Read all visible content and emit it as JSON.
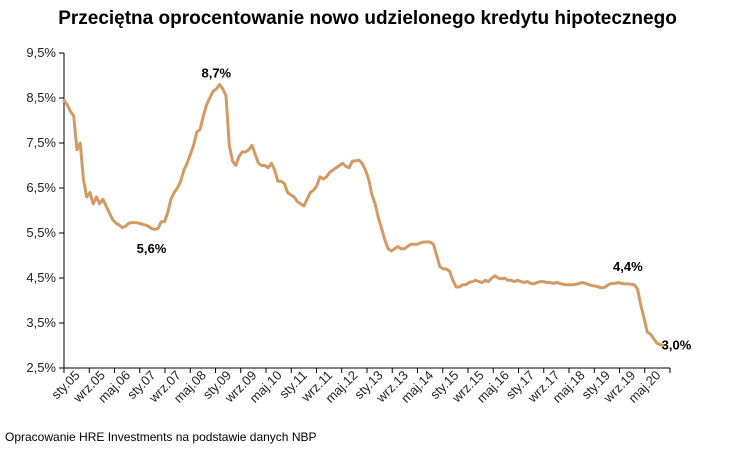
{
  "chart_data": {
    "type": "line",
    "title": "Przeciętna oprocentowanie nowo udzielonego kredytu hipotecznego",
    "source": "Opracowanie HRE Investments na podstawie danych NBP",
    "ylim": [
      2.5,
      9.5
    ],
    "yticks": [
      {
        "value": 2.5,
        "label": "2,5%"
      },
      {
        "value": 3.5,
        "label": "3,5%"
      },
      {
        "value": 4.5,
        "label": "4,5%"
      },
      {
        "value": 5.5,
        "label": "5,5%"
      },
      {
        "value": 6.5,
        "label": "6,5%"
      },
      {
        "value": 7.5,
        "label": "7,5%"
      },
      {
        "value": 8.5,
        "label": "8,5%"
      },
      {
        "value": 9.5,
        "label": "9,5%"
      }
    ],
    "x_start": "2005-01",
    "x_end": "2020-08",
    "xticks": [
      "sty.05",
      "wrz.05",
      "maj.06",
      "sty.07",
      "wrz.07",
      "maj.08",
      "sty.09",
      "wrz.09",
      "maj.10",
      "sty.11",
      "wrz.11",
      "maj.12",
      "sty.13",
      "wrz.13",
      "maj.14",
      "sty.15",
      "wrz.15",
      "maj.16",
      "sty.17",
      "wrz.17",
      "maj.18",
      "sty.19",
      "wrz.19",
      "maj.20"
    ],
    "grid": false,
    "line_color": "#d49a63",
    "series": [
      {
        "points": [
          [
            "2005-01",
            8.45
          ],
          [
            "2005-02",
            8.35
          ],
          [
            "2005-03",
            8.2
          ],
          [
            "2005-04",
            8.1
          ],
          [
            "2005-05",
            7.35
          ],
          [
            "2005-06",
            7.5
          ],
          [
            "2005-07",
            6.7
          ],
          [
            "2005-08",
            6.3
          ],
          [
            "2005-09",
            6.4
          ],
          [
            "2005-10",
            6.15
          ],
          [
            "2005-11",
            6.3
          ],
          [
            "2005-12",
            6.15
          ],
          [
            "2006-01",
            6.25
          ],
          [
            "2006-02",
            6.1
          ],
          [
            "2006-03",
            5.95
          ],
          [
            "2006-04",
            5.8
          ],
          [
            "2006-05",
            5.72
          ],
          [
            "2006-06",
            5.68
          ],
          [
            "2006-07",
            5.62
          ],
          [
            "2006-08",
            5.65
          ],
          [
            "2006-09",
            5.72
          ],
          [
            "2006-10",
            5.73
          ],
          [
            "2006-11",
            5.73
          ],
          [
            "2006-12",
            5.72
          ],
          [
            "2007-01",
            5.7
          ],
          [
            "2007-02",
            5.68
          ],
          [
            "2007-03",
            5.65
          ],
          [
            "2007-04",
            5.6
          ],
          [
            "2007-05",
            5.58
          ],
          [
            "2007-06",
            5.6
          ],
          [
            "2007-07",
            5.75
          ],
          [
            "2007-08",
            5.75
          ],
          [
            "2007-09",
            5.95
          ],
          [
            "2007-10",
            6.25
          ],
          [
            "2007-11",
            6.4
          ],
          [
            "2007-12",
            6.5
          ],
          [
            "2008-01",
            6.65
          ],
          [
            "2008-02",
            6.9
          ],
          [
            "2008-03",
            7.05
          ],
          [
            "2008-04",
            7.25
          ],
          [
            "2008-05",
            7.45
          ],
          [
            "2008-06",
            7.75
          ],
          [
            "2008-07",
            7.8
          ],
          [
            "2008-08",
            8.1
          ],
          [
            "2008-09",
            8.35
          ],
          [
            "2008-10",
            8.5
          ],
          [
            "2008-11",
            8.65
          ],
          [
            "2008-12",
            8.7
          ],
          [
            "2009-01",
            8.8
          ],
          [
            "2009-02",
            8.7
          ],
          [
            "2009-03",
            8.55
          ],
          [
            "2009-04",
            7.45
          ],
          [
            "2009-05",
            7.1
          ],
          [
            "2009-06",
            7.0
          ],
          [
            "2009-07",
            7.2
          ],
          [
            "2009-08",
            7.3
          ],
          [
            "2009-09",
            7.3
          ],
          [
            "2009-10",
            7.35
          ],
          [
            "2009-11",
            7.45
          ],
          [
            "2009-12",
            7.25
          ],
          [
            "2010-01",
            7.05
          ],
          [
            "2010-02",
            7.0
          ],
          [
            "2010-03",
            7.0
          ],
          [
            "2010-04",
            6.95
          ],
          [
            "2010-05",
            7.05
          ],
          [
            "2010-06",
            6.9
          ],
          [
            "2010-07",
            6.65
          ],
          [
            "2010-08",
            6.65
          ],
          [
            "2010-09",
            6.6
          ],
          [
            "2010-10",
            6.4
          ],
          [
            "2010-11",
            6.35
          ],
          [
            "2010-12",
            6.3
          ],
          [
            "2011-01",
            6.2
          ],
          [
            "2011-02",
            6.15
          ],
          [
            "2011-03",
            6.1
          ],
          [
            "2011-04",
            6.25
          ],
          [
            "2011-05",
            6.4
          ],
          [
            "2011-06",
            6.45
          ],
          [
            "2011-07",
            6.55
          ],
          [
            "2011-08",
            6.75
          ],
          [
            "2011-09",
            6.7
          ],
          [
            "2011-10",
            6.75
          ],
          [
            "2011-11",
            6.85
          ],
          [
            "2011-12",
            6.9
          ],
          [
            "2012-01",
            6.95
          ],
          [
            "2012-02",
            7.0
          ],
          [
            "2012-03",
            7.05
          ],
          [
            "2012-04",
            6.98
          ],
          [
            "2012-05",
            6.95
          ],
          [
            "2012-06",
            7.1
          ],
          [
            "2012-07",
            7.1
          ],
          [
            "2012-08",
            7.12
          ],
          [
            "2012-09",
            7.05
          ],
          [
            "2012-10",
            6.9
          ],
          [
            "2012-11",
            6.7
          ],
          [
            "2012-12",
            6.35
          ],
          [
            "2013-01",
            6.15
          ],
          [
            "2013-02",
            5.85
          ],
          [
            "2013-03",
            5.6
          ],
          [
            "2013-04",
            5.35
          ],
          [
            "2013-05",
            5.15
          ],
          [
            "2013-06",
            5.1
          ],
          [
            "2013-07",
            5.15
          ],
          [
            "2013-08",
            5.2
          ],
          [
            "2013-09",
            5.15
          ],
          [
            "2013-10",
            5.15
          ],
          [
            "2013-11",
            5.2
          ],
          [
            "2013-12",
            5.25
          ],
          [
            "2014-01",
            5.25
          ],
          [
            "2014-02",
            5.25
          ],
          [
            "2014-03",
            5.28
          ],
          [
            "2014-04",
            5.3
          ],
          [
            "2014-05",
            5.3
          ],
          [
            "2014-06",
            5.3
          ],
          [
            "2014-07",
            5.25
          ],
          [
            "2014-08",
            5.0
          ],
          [
            "2014-09",
            4.75
          ],
          [
            "2014-10",
            4.7
          ],
          [
            "2014-11",
            4.7
          ],
          [
            "2014-12",
            4.65
          ],
          [
            "2015-01",
            4.45
          ],
          [
            "2015-02",
            4.3
          ],
          [
            "2015-03",
            4.3
          ],
          [
            "2015-04",
            4.35
          ],
          [
            "2015-05",
            4.35
          ],
          [
            "2015-06",
            4.4
          ],
          [
            "2015-07",
            4.42
          ],
          [
            "2015-08",
            4.45
          ],
          [
            "2015-09",
            4.42
          ],
          [
            "2015-10",
            4.4
          ],
          [
            "2015-11",
            4.45
          ],
          [
            "2015-12",
            4.42
          ],
          [
            "2016-01",
            4.5
          ],
          [
            "2016-02",
            4.55
          ],
          [
            "2016-03",
            4.5
          ],
          [
            "2016-04",
            4.48
          ],
          [
            "2016-05",
            4.5
          ],
          [
            "2016-06",
            4.45
          ],
          [
            "2016-07",
            4.45
          ],
          [
            "2016-08",
            4.42
          ],
          [
            "2016-09",
            4.45
          ],
          [
            "2016-10",
            4.42
          ],
          [
            "2016-11",
            4.4
          ],
          [
            "2016-12",
            4.42
          ],
          [
            "2017-01",
            4.38
          ],
          [
            "2017-02",
            4.37
          ],
          [
            "2017-03",
            4.4
          ],
          [
            "2017-04",
            4.42
          ],
          [
            "2017-05",
            4.42
          ],
          [
            "2017-06",
            4.4
          ],
          [
            "2017-07",
            4.4
          ],
          [
            "2017-08",
            4.38
          ],
          [
            "2017-09",
            4.4
          ],
          [
            "2017-10",
            4.38
          ],
          [
            "2017-11",
            4.36
          ],
          [
            "2017-12",
            4.35
          ],
          [
            "2018-01",
            4.35
          ],
          [
            "2018-02",
            4.35
          ],
          [
            "2018-03",
            4.36
          ],
          [
            "2018-04",
            4.38
          ],
          [
            "2018-05",
            4.4
          ],
          [
            "2018-06",
            4.38
          ],
          [
            "2018-07",
            4.35
          ],
          [
            "2018-08",
            4.33
          ],
          [
            "2018-09",
            4.32
          ],
          [
            "2018-10",
            4.3
          ],
          [
            "2018-11",
            4.28
          ],
          [
            "2018-12",
            4.3
          ],
          [
            "2019-01",
            4.35
          ],
          [
            "2019-02",
            4.38
          ],
          [
            "2019-03",
            4.38
          ],
          [
            "2019-04",
            4.4
          ],
          [
            "2019-05",
            4.38
          ],
          [
            "2019-06",
            4.37
          ],
          [
            "2019-07",
            4.37
          ],
          [
            "2019-08",
            4.36
          ],
          [
            "2019-09",
            4.35
          ],
          [
            "2019-10",
            4.25
          ],
          [
            "2019-11",
            3.9
          ],
          [
            "2019-12",
            3.6
          ],
          [
            "2020-01",
            3.3
          ],
          [
            "2020-02",
            3.25
          ],
          [
            "2020-03",
            3.15
          ],
          [
            "2020-04",
            3.05
          ],
          [
            "2020-05",
            3.02
          ],
          [
            "2020-06",
            3.0
          ]
        ]
      }
    ],
    "annotations": [
      {
        "text": "8,7%",
        "x": "2008-12",
        "y": 9.05
      },
      {
        "text": "5,6%",
        "x": "2007-04",
        "y": 5.15
      },
      {
        "text": "4,4%",
        "x": "2019-07",
        "y": 4.75
      },
      {
        "text": "3,0%",
        "x": "2020-10",
        "y": 3.0
      }
    ]
  }
}
